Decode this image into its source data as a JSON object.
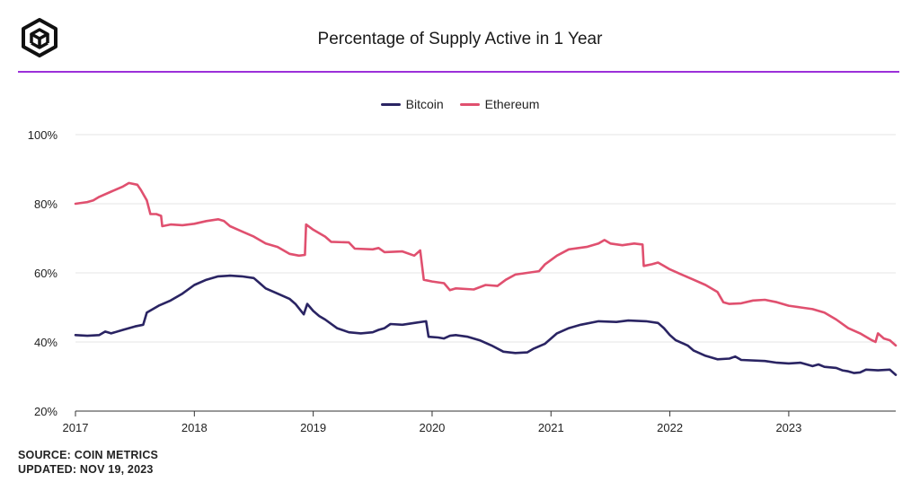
{
  "header": {
    "logo_icon": "cube-logo-icon",
    "title": "Percentage of Supply Active in 1 Year"
  },
  "colors": {
    "accent_divider": "#9b30d9",
    "bitcoin": "#2a2463",
    "ethereum": "#e0506f"
  },
  "footer": {
    "source": "SOURCE: COIN METRICS",
    "updated": "UPDATED: NOV 19, 2023"
  },
  "chart_data": {
    "type": "line",
    "title": "Percentage of Supply Active in 1 Year",
    "xlabel": "",
    "ylabel": "",
    "legend_position": "top-center",
    "grid": true,
    "xlim": [
      2017.0,
      2023.9
    ],
    "ylim": [
      20,
      100
    ],
    "x_ticks": [
      2017,
      2018,
      2019,
      2020,
      2021,
      2022,
      2023
    ],
    "x_tick_labels": [
      "2017",
      "2018",
      "2019",
      "2020",
      "2021",
      "2022",
      "2023"
    ],
    "y_ticks": [
      20,
      40,
      60,
      80,
      100
    ],
    "y_tick_labels": [
      "20%",
      "40%",
      "60%",
      "80%",
      "100%"
    ],
    "series": [
      {
        "name": "Bitcoin",
        "color": "#2a2463",
        "points": [
          [
            2017.0,
            42.0
          ],
          [
            2017.1,
            41.8
          ],
          [
            2017.2,
            42.0
          ],
          [
            2017.25,
            43.0
          ],
          [
            2017.3,
            42.5
          ],
          [
            2017.4,
            43.5
          ],
          [
            2017.5,
            44.5
          ],
          [
            2017.57,
            45.0
          ],
          [
            2017.6,
            48.5
          ],
          [
            2017.7,
            50.5
          ],
          [
            2017.8,
            52.0
          ],
          [
            2017.9,
            54.0
          ],
          [
            2018.0,
            56.5
          ],
          [
            2018.1,
            58.0
          ],
          [
            2018.2,
            59.0
          ],
          [
            2018.3,
            59.2
          ],
          [
            2018.4,
            59.0
          ],
          [
            2018.5,
            58.5
          ],
          [
            2018.55,
            57.0
          ],
          [
            2018.6,
            55.5
          ],
          [
            2018.7,
            54.0
          ],
          [
            2018.8,
            52.5
          ],
          [
            2018.85,
            51.0
          ],
          [
            2018.92,
            48.0
          ],
          [
            2018.95,
            51.0
          ],
          [
            2019.0,
            49.0
          ],
          [
            2019.05,
            47.5
          ],
          [
            2019.1,
            46.5
          ],
          [
            2019.2,
            44.0
          ],
          [
            2019.3,
            42.8
          ],
          [
            2019.4,
            42.5
          ],
          [
            2019.5,
            42.8
          ],
          [
            2019.55,
            43.5
          ],
          [
            2019.6,
            44.0
          ],
          [
            2019.65,
            45.2
          ],
          [
            2019.75,
            45.0
          ],
          [
            2019.85,
            45.5
          ],
          [
            2019.95,
            46.0
          ],
          [
            2019.97,
            41.5
          ],
          [
            2020.05,
            41.3
          ],
          [
            2020.1,
            41.0
          ],
          [
            2020.15,
            41.8
          ],
          [
            2020.2,
            42.0
          ],
          [
            2020.3,
            41.5
          ],
          [
            2020.4,
            40.5
          ],
          [
            2020.5,
            39.0
          ],
          [
            2020.6,
            37.2
          ],
          [
            2020.7,
            36.8
          ],
          [
            2020.8,
            37.0
          ],
          [
            2020.85,
            38.0
          ],
          [
            2020.95,
            39.5
          ],
          [
            2021.05,
            42.5
          ],
          [
            2021.15,
            44.0
          ],
          [
            2021.25,
            45.0
          ],
          [
            2021.4,
            46.0
          ],
          [
            2021.55,
            45.8
          ],
          [
            2021.65,
            46.2
          ],
          [
            2021.8,
            46.0
          ],
          [
            2021.9,
            45.5
          ],
          [
            2021.95,
            44.0
          ],
          [
            2022.0,
            42.0
          ],
          [
            2022.05,
            40.5
          ],
          [
            2022.15,
            39.0
          ],
          [
            2022.2,
            37.5
          ],
          [
            2022.3,
            36.0
          ],
          [
            2022.4,
            35.0
          ],
          [
            2022.5,
            35.2
          ],
          [
            2022.55,
            35.8
          ],
          [
            2022.6,
            34.8
          ],
          [
            2022.8,
            34.5
          ],
          [
            2022.9,
            34.0
          ],
          [
            2023.0,
            33.8
          ],
          [
            2023.1,
            34.0
          ],
          [
            2023.15,
            33.5
          ],
          [
            2023.2,
            33.0
          ],
          [
            2023.25,
            33.5
          ],
          [
            2023.3,
            32.8
          ],
          [
            2023.4,
            32.5
          ],
          [
            2023.45,
            31.8
          ],
          [
            2023.5,
            31.5
          ],
          [
            2023.55,
            31.0
          ],
          [
            2023.6,
            31.2
          ],
          [
            2023.65,
            32.0
          ],
          [
            2023.75,
            31.8
          ],
          [
            2023.85,
            32.0
          ],
          [
            2023.9,
            30.5
          ]
        ]
      },
      {
        "name": "Ethereum",
        "color": "#e0506f",
        "points": [
          [
            2017.0,
            80.0
          ],
          [
            2017.1,
            80.5
          ],
          [
            2017.15,
            81.0
          ],
          [
            2017.2,
            82.0
          ],
          [
            2017.3,
            83.5
          ],
          [
            2017.4,
            85.0
          ],
          [
            2017.45,
            86.0
          ],
          [
            2017.52,
            85.5
          ],
          [
            2017.55,
            84.0
          ],
          [
            2017.6,
            81.0
          ],
          [
            2017.63,
            77.0
          ],
          [
            2017.68,
            77.0
          ],
          [
            2017.72,
            76.5
          ],
          [
            2017.73,
            73.5
          ],
          [
            2017.8,
            74.0
          ],
          [
            2017.9,
            73.8
          ],
          [
            2018.0,
            74.2
          ],
          [
            2018.1,
            75.0
          ],
          [
            2018.2,
            75.5
          ],
          [
            2018.25,
            75.0
          ],
          [
            2018.3,
            73.5
          ],
          [
            2018.4,
            72.0
          ],
          [
            2018.5,
            70.5
          ],
          [
            2018.6,
            68.5
          ],
          [
            2018.7,
            67.5
          ],
          [
            2018.8,
            65.5
          ],
          [
            2018.88,
            65.0
          ],
          [
            2018.93,
            65.2
          ],
          [
            2018.94,
            74.0
          ],
          [
            2019.0,
            72.5
          ],
          [
            2019.1,
            70.5
          ],
          [
            2019.15,
            69.0
          ],
          [
            2019.3,
            68.8
          ],
          [
            2019.35,
            67.0
          ],
          [
            2019.5,
            66.8
          ],
          [
            2019.55,
            67.2
          ],
          [
            2019.6,
            66.0
          ],
          [
            2019.75,
            66.2
          ],
          [
            2019.85,
            65.0
          ],
          [
            2019.9,
            66.5
          ],
          [
            2019.93,
            58.0
          ],
          [
            2020.0,
            57.5
          ],
          [
            2020.1,
            57.0
          ],
          [
            2020.15,
            55.0
          ],
          [
            2020.2,
            55.5
          ],
          [
            2020.35,
            55.2
          ],
          [
            2020.45,
            56.5
          ],
          [
            2020.55,
            56.2
          ],
          [
            2020.62,
            58.0
          ],
          [
            2020.7,
            59.5
          ],
          [
            2020.8,
            60.0
          ],
          [
            2020.9,
            60.5
          ],
          [
            2020.95,
            62.5
          ],
          [
            2021.05,
            65.0
          ],
          [
            2021.15,
            66.8
          ],
          [
            2021.3,
            67.5
          ],
          [
            2021.4,
            68.5
          ],
          [
            2021.45,
            69.5
          ],
          [
            2021.5,
            68.5
          ],
          [
            2021.6,
            68.0
          ],
          [
            2021.7,
            68.5
          ],
          [
            2021.77,
            68.2
          ],
          [
            2021.78,
            62.0
          ],
          [
            2021.85,
            62.5
          ],
          [
            2021.9,
            63.0
          ],
          [
            2021.95,
            62.0
          ],
          [
            2022.0,
            61.0
          ],
          [
            2022.1,
            59.5
          ],
          [
            2022.2,
            58.0
          ],
          [
            2022.3,
            56.5
          ],
          [
            2022.4,
            54.5
          ],
          [
            2022.45,
            51.5
          ],
          [
            2022.5,
            51.0
          ],
          [
            2022.6,
            51.2
          ],
          [
            2022.7,
            52.0
          ],
          [
            2022.8,
            52.2
          ],
          [
            2022.9,
            51.5
          ],
          [
            2023.0,
            50.5
          ],
          [
            2023.1,
            50.0
          ],
          [
            2023.2,
            49.5
          ],
          [
            2023.3,
            48.5
          ],
          [
            2023.4,
            46.5
          ],
          [
            2023.5,
            44.0
          ],
          [
            2023.6,
            42.5
          ],
          [
            2023.7,
            40.5
          ],
          [
            2023.73,
            40.0
          ],
          [
            2023.75,
            42.5
          ],
          [
            2023.8,
            41.0
          ],
          [
            2023.85,
            40.5
          ],
          [
            2023.9,
            39.0
          ]
        ]
      }
    ]
  }
}
